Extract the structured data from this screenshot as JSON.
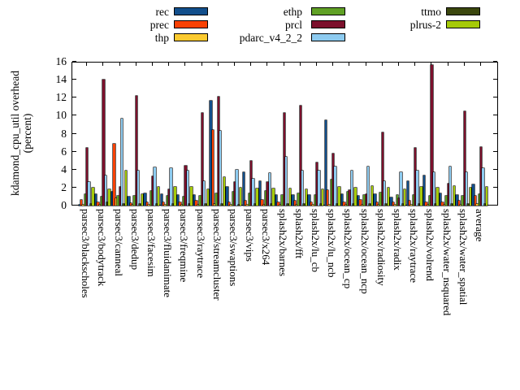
{
  "chart_data": {
    "type": "bar",
    "title": "",
    "ylabel_line1": "kdamond_cpu_util overhead",
    "ylabel_line2": "(percent)",
    "ylim": [
      0,
      16
    ],
    "yticks": [
      0,
      2,
      4,
      6,
      8,
      10,
      12,
      14,
      16
    ],
    "grid": false,
    "legend_position": "top",
    "legend_columns": [
      [
        "rec",
        "prec",
        "thp"
      ],
      [
        "ethp",
        "prcl",
        "pdarc_v4_2_2"
      ],
      [
        "ttmo",
        "plrus-2"
      ]
    ],
    "categories": [
      "parsec3/blackscholes",
      "parsec3/bodytrack",
      "parsec3/canneal",
      "parsec3/dedup",
      "parsec3/facesim",
      "parsec3/fluidanimate",
      "parsec3/freqmine",
      "parsec3/raytrace",
      "parsec3/streamcluster",
      "parsec3/swaptions",
      "parsec3/vips",
      "parsec3/x264",
      "splash2x/barnes",
      "splash2x/fft",
      "splash2x/lu_cb",
      "splash2x/lu_ncb",
      "splash2x/ocean_cp",
      "splash2x/ocean_ncp",
      "splash2x/radiosity",
      "splash2x/radix",
      "splash2x/raytrace",
      "splash2x/volrend",
      "splash2x/water_nsquared",
      "splash2x/water_spatial",
      "average"
    ],
    "series": [
      {
        "name": "rec",
        "color": "#124f8c",
        "values": [
          0.1,
          1.3,
          1.5,
          0.95,
          1.4,
          1.3,
          1.2,
          1.15,
          11.7,
          2.1,
          3.7,
          2.7,
          1.2,
          1.2,
          1.2,
          9.5,
          1.3,
          1.1,
          1.3,
          0.9,
          2.7,
          3.3,
          1.4,
          1.2,
          2.35
        ]
      },
      {
        "name": "prec",
        "color": "#f94103",
        "values": [
          0.6,
          0.35,
          6.9,
          0.25,
          0.4,
          0.35,
          0.35,
          0.5,
          8.4,
          0.4,
          0.55,
          0.6,
          0.35,
          0.5,
          0.35,
          1.75,
          0.4,
          0.6,
          0.4,
          0.35,
          0.5,
          0.4,
          0.4,
          0.55,
          1.1
        ]
      },
      {
        "name": "thp",
        "color": "#fcca2f",
        "values": [
          0.1,
          0.1,
          0.85,
          0.1,
          0.1,
          0.1,
          0.1,
          0.1,
          0.15,
          0.1,
          0.1,
          0.1,
          0.1,
          0.1,
          0.1,
          0.1,
          0.1,
          0.1,
          0.1,
          0.1,
          0.1,
          0.1,
          0.1,
          0.1,
          0.15
        ]
      },
      {
        "name": "ethp",
        "color": "#60a125",
        "values": [
          1.3,
          0.95,
          1.1,
          1.1,
          1.6,
          1.1,
          1.0,
          1.1,
          1.35,
          1.55,
          1.4,
          1.65,
          1.15,
          1.4,
          1.15,
          2.85,
          1.55,
          1.15,
          1.45,
          1.15,
          1.2,
          1.1,
          1.1,
          1.1,
          1.3
        ]
      },
      {
        "name": "prcl",
        "color": "#7c102c",
        "values": [
          6.45,
          14.0,
          2.1,
          12.2,
          3.25,
          1.8,
          4.4,
          10.3,
          12.1,
          2.6,
          5.0,
          2.6,
          10.3,
          11.15,
          4.8,
          5.75,
          1.75,
          1.3,
          8.1,
          0.85,
          6.45,
          15.6,
          2.4,
          10.45,
          6.5
        ]
      },
      {
        "name": "pdarc_v4_2_2",
        "color": "#8dcbf0",
        "values": [
          2.6,
          3.3,
          9.65,
          3.9,
          4.25,
          4.2,
          3.9,
          2.7,
          8.3,
          4.0,
          3.0,
          3.6,
          5.45,
          3.85,
          3.85,
          4.35,
          3.85,
          4.35,
          2.7,
          3.75,
          3.9,
          3.75,
          4.3,
          3.75,
          4.2
        ]
      },
      {
        "name": "ttmo",
        "color": "#3b470e",
        "values": [
          0.15,
          0.35,
          0.2,
          0.15,
          0.15,
          0.15,
          0.15,
          0.15,
          0.2,
          0.1,
          0.15,
          0.15,
          0.15,
          0.2,
          0.15,
          0.15,
          0.15,
          0.15,
          0.15,
          0.15,
          0.15,
          0.15,
          0.15,
          0.15,
          0.15
        ]
      },
      {
        "name": "plrus-2",
        "color": "#a5ca08",
        "values": [
          1.95,
          1.85,
          3.9,
          1.3,
          2.1,
          2.1,
          2.1,
          1.85,
          3.2,
          2.0,
          1.9,
          1.9,
          1.9,
          1.85,
          1.85,
          2.1,
          2.0,
          2.15,
          2.0,
          1.85,
          2.05,
          2.0,
          2.15,
          1.95,
          2.05
        ]
      }
    ]
  }
}
